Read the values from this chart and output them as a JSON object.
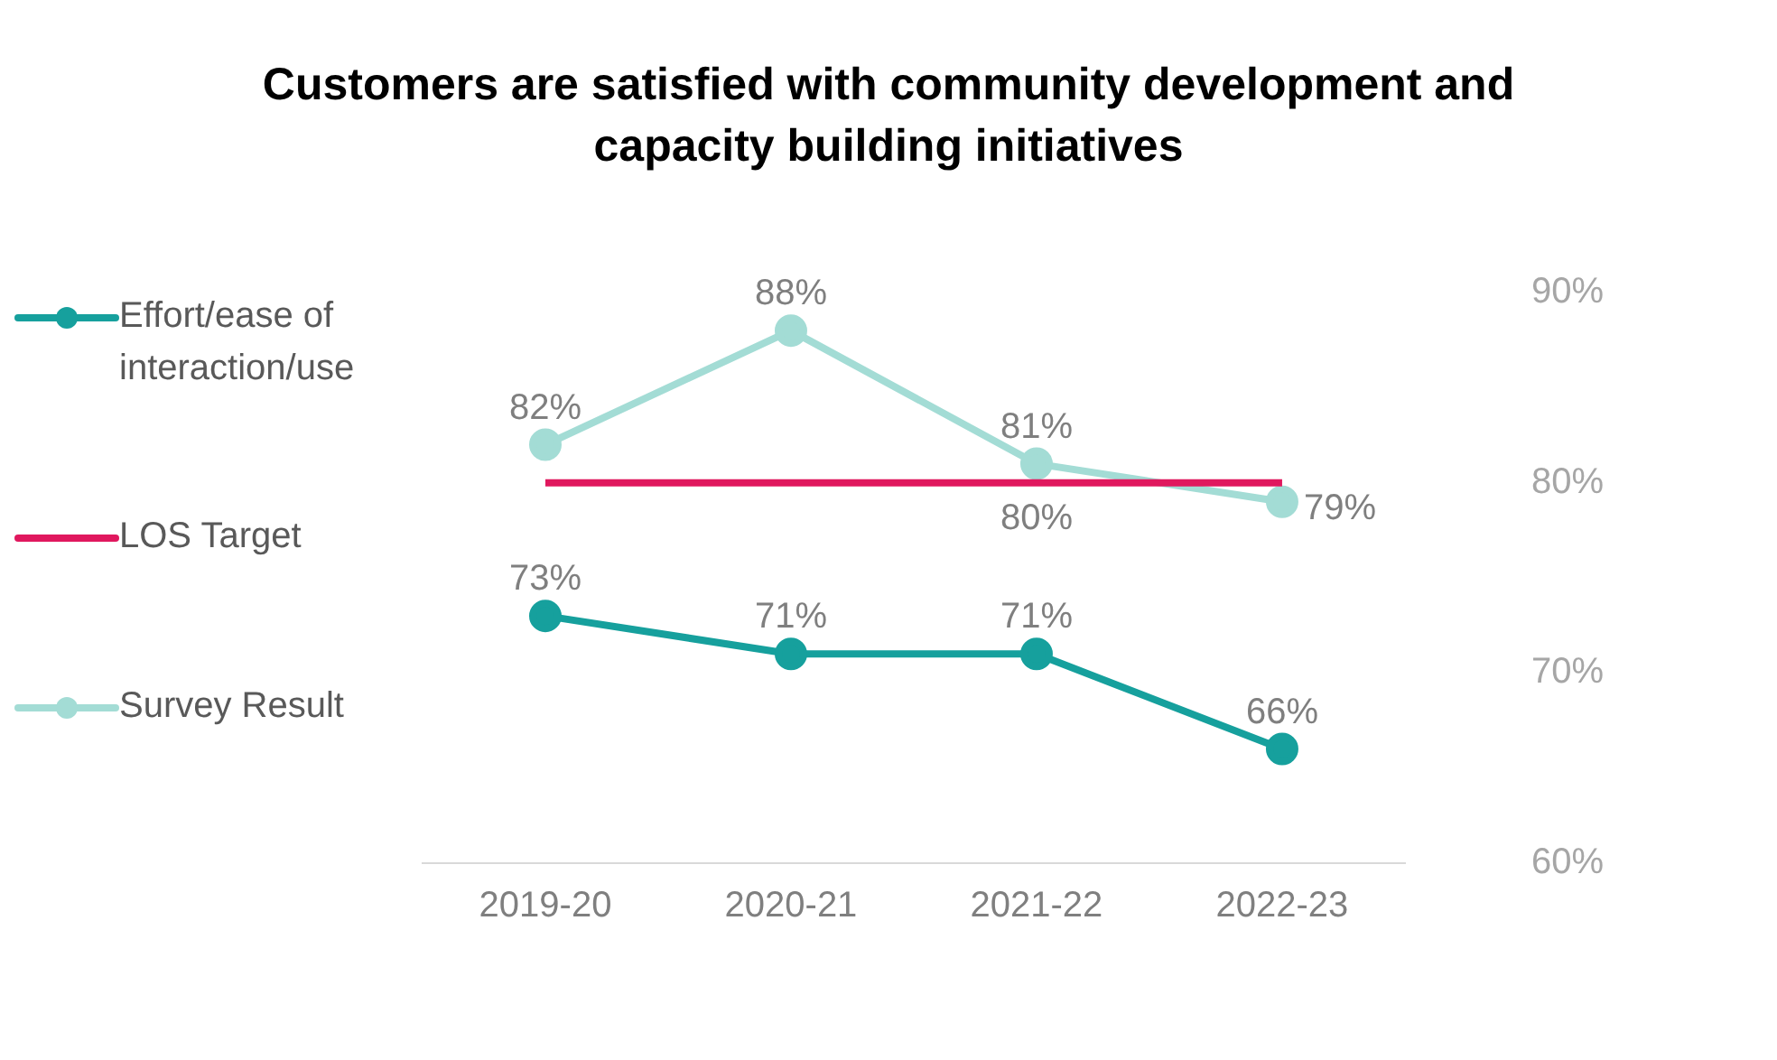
{
  "chart_data": {
    "type": "line",
    "title": "Customers are satisfied with community development and capacity building initiatives",
    "categories": [
      "2019-20",
      "2020-21",
      "2021-22",
      "2022-23"
    ],
    "series": [
      {
        "name": "Effort/ease of interaction/use",
        "color": "#16a09d",
        "values": [
          73,
          71,
          71,
          66
        ],
        "marker": "circle",
        "value_labels": [
          "73%",
          "71%",
          "71%",
          "66%"
        ]
      },
      {
        "name": "LOS Target",
        "color": "#e0185e",
        "values": [
          80,
          80,
          80,
          80
        ],
        "marker": "none",
        "value_labels": [
          null,
          null,
          "80%",
          null
        ]
      },
      {
        "name": "Survey Result",
        "color": "#a3dcd5",
        "values": [
          82,
          88,
          81,
          79
        ],
        "marker": "circle",
        "value_labels": [
          "82%",
          "88%",
          "81%",
          "79%"
        ]
      }
    ],
    "ylim": [
      60,
      90
    ],
    "yticks": [
      {
        "value": 60,
        "label": "60%"
      },
      {
        "value": 70,
        "label": "70%"
      },
      {
        "value": 80,
        "label": "80%"
      },
      {
        "value": 90,
        "label": "90%"
      }
    ],
    "grid": false,
    "legend": "left"
  }
}
